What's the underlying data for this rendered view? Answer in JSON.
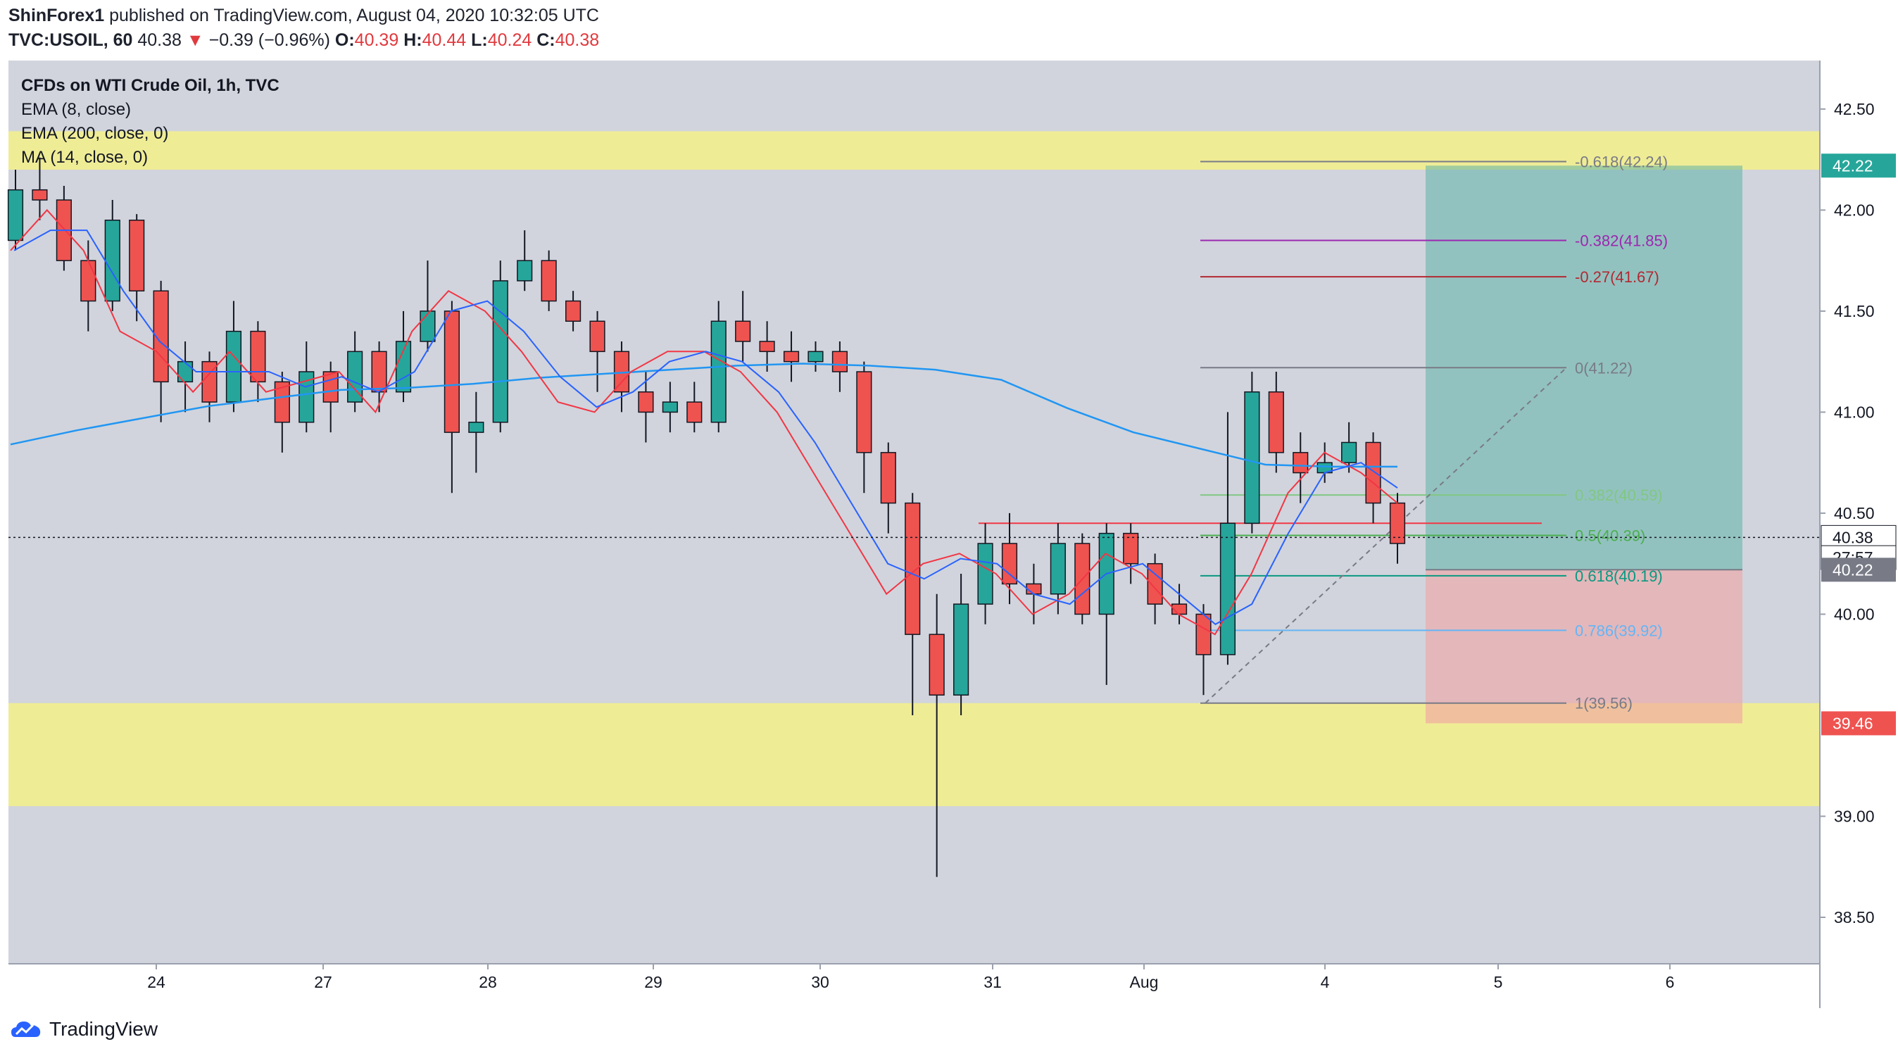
{
  "header": {
    "author": "ShinForex1",
    "published_text": "published on TradingView.com, August 04, 2020 10:32:05 UTC",
    "symbol": "TVC:USOIL, 60",
    "last": "40.38",
    "change": "−0.39 (−0.96%)",
    "o_label": "O:",
    "o_value": "40.39",
    "h_label": "H:",
    "h_value": "40.44",
    "l_label": "L:",
    "l_value": "40.24",
    "c_label": "C:",
    "c_value": "40.38"
  },
  "legend": {
    "title": "CFDs on WTI Crude Oil, 1h, TVC",
    "ema8": "EMA (8, close)",
    "ema200": "EMA (200, close, 0)",
    "ma14": "MA (14, close, 0)"
  },
  "footer": {
    "brand": "TradingView"
  },
  "colors": {
    "background": "#d1d4dc",
    "up": "#26a69a",
    "down": "#ef5350",
    "ema8": "#f23645",
    "ema200": "#2196f3",
    "ma14": "#2962ff",
    "zone": "#f5f08a"
  },
  "chart_data": {
    "type": "candlestick",
    "ylim": [
      38.27,
      42.74
    ],
    "y_ticks": [
      "42.50",
      "42.00",
      "41.50",
      "41.00",
      "40.50",
      "40.00",
      "39.00",
      "38.50"
    ],
    "x_ticks": [
      "24",
      "27",
      "28",
      "29",
      "30",
      "31",
      "Aug",
      "4",
      "5",
      "6"
    ],
    "last_price": "40.38",
    "countdown": "27:57",
    "price_labels": [
      {
        "text": "42.22",
        "value": 42.22,
        "color": "#26a69a"
      },
      {
        "text": "40.38",
        "value": 40.38,
        "color": "#131722"
      },
      {
        "text": "27:57",
        "value": 40.28,
        "color": "#131722"
      },
      {
        "text": "40.22",
        "value": 40.22,
        "color": "#787b86"
      },
      {
        "text": "39.46",
        "value": 39.46,
        "color": "#ef5350"
      }
    ],
    "zones": [
      {
        "from": 42.2,
        "to": 42.39
      },
      {
        "from": 39.05,
        "to": 39.56
      }
    ],
    "fib_levels": [
      {
        "label": "-0.618(42.24)",
        "value": 42.24,
        "color": "#787b86"
      },
      {
        "label": "-0.382(41.85)",
        "value": 41.85,
        "color": "#9c27b0"
      },
      {
        "label": "-0.27(41.67)",
        "value": 41.67,
        "color": "#b22833"
      },
      {
        "label": "0(41.22)",
        "value": 41.22,
        "color": "#787b86"
      },
      {
        "label": "0.382(40.59)",
        "value": 40.59,
        "color": "#81c784"
      },
      {
        "label": "0.5(40.39)",
        "value": 40.39,
        "color": "#4caf50"
      },
      {
        "label": "0.618(40.19)",
        "value": 40.19,
        "color": "#089981"
      },
      {
        "label": "0.786(39.92)",
        "value": 39.92,
        "color": "#64b5f6"
      },
      {
        "label": "1(39.56)",
        "value": 39.56,
        "color": "#787b86"
      }
    ],
    "resistance_line": 40.45,
    "position": {
      "entry": 40.22,
      "target": 42.22,
      "stop": 39.46
    },
    "ema200": [
      40.84,
      40.91,
      40.97,
      41.03,
      41.07,
      41.11,
      41.12,
      41.14,
      41.17,
      41.19,
      41.21,
      41.23,
      41.24,
      41.23,
      41.21,
      41.16,
      41.02,
      40.9,
      40.82,
      40.74,
      40.73,
      40.73
    ],
    "ema8": [
      41.8,
      42.0,
      41.8,
      41.4,
      41.3,
      41.1,
      41.3,
      41.1,
      41.15,
      41.2,
      41.0,
      41.4,
      41.6,
      41.5,
      41.3,
      41.05,
      41.0,
      41.2,
      41.3,
      41.3,
      41.2,
      41.0,
      40.7,
      40.4,
      40.1,
      40.25,
      40.3,
      40.2,
      40.0,
      40.1,
      40.3,
      40.2,
      40.0,
      39.9,
      40.2,
      40.6,
      40.8,
      40.7,
      40.55
    ],
    "candles": [
      [
        41.85,
        42.1,
        42.2,
        41.8
      ],
      [
        42.1,
        42.05,
        42.26,
        41.95
      ],
      [
        42.05,
        41.75,
        42.12,
        41.7
      ],
      [
        41.75,
        41.55,
        41.85,
        41.4
      ],
      [
        41.55,
        41.95,
        42.05,
        41.5
      ],
      [
        41.95,
        41.6,
        41.98,
        41.45
      ],
      [
        41.6,
        41.15,
        41.65,
        40.95
      ],
      [
        41.15,
        41.25,
        41.35,
        41.0
      ],
      [
        41.25,
        41.05,
        41.3,
        40.95
      ],
      [
        41.05,
        41.4,
        41.55,
        41.0
      ],
      [
        41.4,
        41.15,
        41.45,
        41.05
      ],
      [
        41.15,
        40.95,
        41.2,
        40.8
      ],
      [
        40.95,
        41.2,
        41.35,
        40.9
      ],
      [
        41.2,
        41.05,
        41.25,
        40.9
      ],
      [
        41.05,
        41.3,
        41.4,
        41.0
      ],
      [
        41.3,
        41.1,
        41.35,
        41.0
      ],
      [
        41.1,
        41.35,
        41.5,
        41.05
      ],
      [
        41.35,
        41.5,
        41.75,
        41.3
      ],
      [
        41.5,
        40.9,
        41.55,
        40.6
      ],
      [
        40.9,
        40.95,
        41.1,
        40.7
      ],
      [
        40.95,
        41.65,
        41.75,
        40.9
      ],
      [
        41.65,
        41.75,
        41.9,
        41.6
      ],
      [
        41.75,
        41.55,
        41.8,
        41.5
      ],
      [
        41.55,
        41.45,
        41.6,
        41.4
      ],
      [
        41.45,
        41.3,
        41.5,
        41.1
      ],
      [
        41.3,
        41.1,
        41.35,
        41.0
      ],
      [
        41.1,
        41.0,
        41.2,
        40.85
      ],
      [
        41.0,
        41.05,
        41.15,
        40.9
      ],
      [
        41.05,
        40.95,
        41.15,
        40.9
      ],
      [
        40.95,
        41.45,
        41.55,
        40.9
      ],
      [
        41.45,
        41.35,
        41.6,
        41.25
      ],
      [
        41.35,
        41.3,
        41.45,
        41.2
      ],
      [
        41.3,
        41.25,
        41.4,
        41.15
      ],
      [
        41.25,
        41.3,
        41.35,
        41.2
      ],
      [
        41.3,
        41.2,
        41.35,
        41.1
      ],
      [
        41.2,
        40.8,
        41.25,
        40.6
      ],
      [
        40.8,
        40.55,
        40.85,
        40.4
      ],
      [
        40.55,
        39.9,
        40.6,
        39.5
      ],
      [
        39.9,
        39.6,
        40.1,
        38.7
      ],
      [
        39.6,
        40.05,
        40.2,
        39.5
      ],
      [
        40.05,
        40.35,
        40.45,
        39.95
      ],
      [
        40.35,
        40.15,
        40.5,
        40.05
      ],
      [
        40.15,
        40.1,
        40.25,
        39.95
      ],
      [
        40.1,
        40.35,
        40.45,
        40.0
      ],
      [
        40.35,
        40.0,
        40.4,
        39.95
      ],
      [
        40.0,
        40.4,
        40.45,
        39.65
      ],
      [
        40.4,
        40.25,
        40.45,
        40.15
      ],
      [
        40.25,
        40.05,
        40.3,
        39.95
      ],
      [
        40.05,
        40.0,
        40.15,
        39.95
      ],
      [
        40.0,
        39.8,
        40.05,
        39.6
      ],
      [
        39.8,
        40.45,
        41.0,
        39.75
      ],
      [
        40.45,
        41.1,
        41.2,
        40.4
      ],
      [
        41.1,
        40.8,
        41.2,
        40.7
      ],
      [
        40.8,
        40.7,
        40.9,
        40.55
      ],
      [
        40.7,
        40.75,
        40.85,
        40.65
      ],
      [
        40.75,
        40.85,
        40.95,
        40.7
      ],
      [
        40.85,
        40.55,
        40.9,
        40.45
      ],
      [
        40.55,
        40.35,
        40.6,
        40.25
      ]
    ]
  }
}
